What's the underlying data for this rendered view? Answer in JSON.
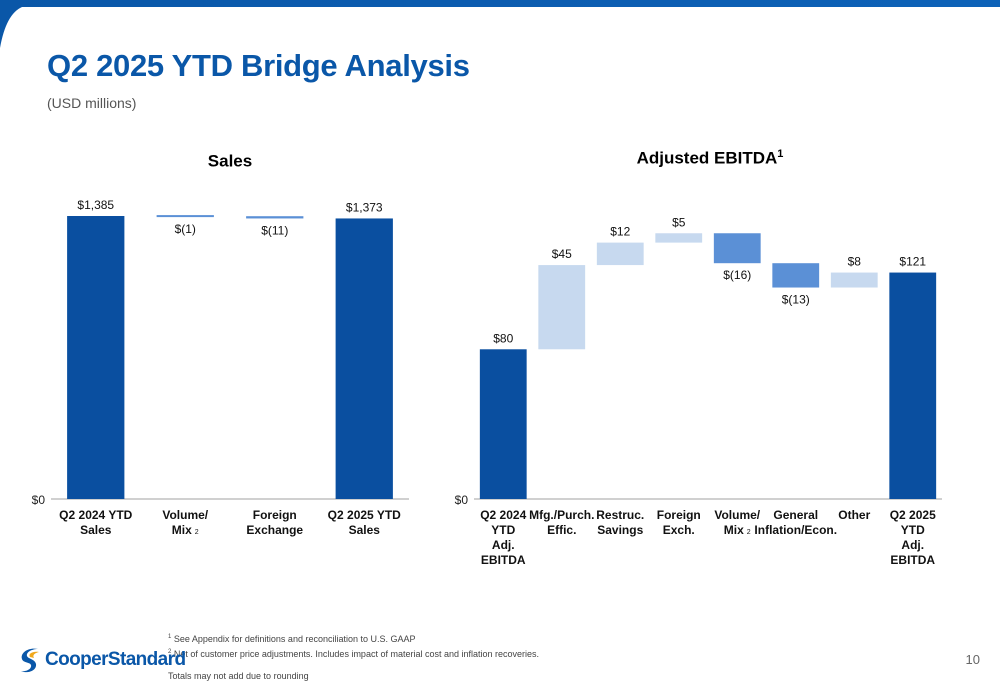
{
  "page": {
    "title": "Q2 2025 YTD Bridge Analysis",
    "subtitle": "(USD millions)",
    "page_number": "10"
  },
  "footnotes": {
    "note1_marker": "1",
    "note1": "See Appendix for definitions and reconciliation to U.S. GAAP",
    "note2_marker": "2",
    "note2": "Net of customer price adjustments. Includes impact of material cost and inflation recoveries.",
    "note3": "Totals may not add due to rounding"
  },
  "logo": {
    "text": "CooperStandard"
  },
  "colors": {
    "total_bar": "#0a4fa0",
    "increase_bar": "#c7d9ef",
    "decrease_bar": "#5b90d6",
    "title": "#0a57a8"
  },
  "chart_data": [
    {
      "type": "bar",
      "subtype": "waterfall",
      "title": "Sales",
      "title_sup": "",
      "ylabel": "",
      "ytick_label": "$0",
      "categories": [
        [
          "Q2 2024 YTD",
          "Sales"
        ],
        [
          "Volume/",
          "Mix"
        ],
        [
          "Foreign",
          "Exchange"
        ],
        [
          "Q2 2025 YTD",
          "Sales"
        ]
      ],
      "category_superscripts": [
        "",
        "2",
        "",
        ""
      ],
      "values": [
        1385,
        -1,
        -11,
        1373
      ],
      "kinds": [
        "total",
        "decrease",
        "decrease",
        "total"
      ],
      "data_labels": [
        "$1,385",
        "$(1)",
        "$(11)",
        "$1,373"
      ],
      "label_positions": [
        "above",
        "below",
        "below",
        "above"
      ],
      "ylim": [
        0,
        1385
      ]
    },
    {
      "type": "bar",
      "subtype": "waterfall",
      "title": "Adjusted EBITDA",
      "title_sup": "1",
      "ylabel": "",
      "ytick_label": "$0",
      "categories": [
        [
          "Q2 2024",
          "YTD",
          "Adj.",
          "EBITDA"
        ],
        [
          "Mfg./Purch.",
          "Effic."
        ],
        [
          "Restruc.",
          "Savings"
        ],
        [
          "Foreign",
          "Exch."
        ],
        [
          "Volume/",
          "Mix"
        ],
        [
          "General",
          "Inflation/Econ."
        ],
        [
          "Other"
        ],
        [
          "Q2 2025",
          "YTD",
          "Adj.",
          "EBITDA"
        ]
      ],
      "category_superscripts": [
        "",
        "",
        "",
        "",
        "2",
        "",
        "",
        ""
      ],
      "values": [
        80,
        45,
        12,
        5,
        -16,
        -13,
        8,
        121
      ],
      "kinds": [
        "total",
        "increase",
        "increase",
        "increase",
        "decrease",
        "decrease",
        "increase",
        "total"
      ],
      "data_labels": [
        "$80",
        "$45",
        "$12",
        "$5",
        "$(16)",
        "$(13)",
        "$8",
        "$121"
      ],
      "label_positions": [
        "above",
        "above",
        "above",
        "above",
        "below",
        "below",
        "above",
        "above"
      ],
      "ylim": [
        0,
        140
      ]
    }
  ]
}
